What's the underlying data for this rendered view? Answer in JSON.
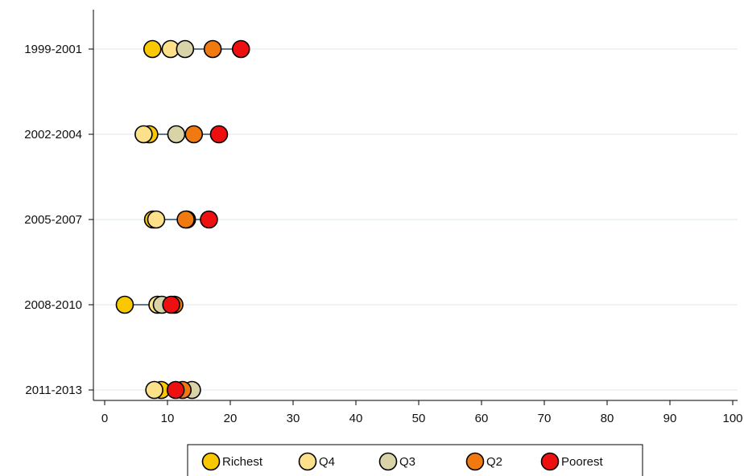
{
  "chart_data": {
    "type": "dot",
    "title": "",
    "xlabel": "",
    "ylabel": "",
    "xlim": [
      0,
      100
    ],
    "xticks": [
      0,
      10,
      20,
      30,
      40,
      50,
      60,
      70,
      80,
      90,
      100
    ],
    "categories": [
      "1999-2001",
      "2002-2004",
      "2005-2007",
      "2008-2010",
      "2011-2013"
    ],
    "grid": "horizontal",
    "legend_position": "bottom",
    "series": [
      {
        "name": "Richest",
        "color": "#F9C800",
        "values": [
          7.6,
          7.1,
          7.7,
          3.2,
          9.0
        ]
      },
      {
        "name": "Q4",
        "color": "#FDE08A",
        "values": [
          10.5,
          6.2,
          8.2,
          8.4,
          7.9
        ]
      },
      {
        "name": "Q3",
        "color": "#D9D4A8",
        "values": [
          12.8,
          11.4,
          13.1,
          9.1,
          13.9
        ]
      },
      {
        "name": "Q2",
        "color": "#F07A10",
        "values": [
          17.2,
          14.2,
          12.9,
          11.1,
          12.4
        ]
      },
      {
        "name": "Poorest",
        "color": "#EE1010",
        "values": [
          21.7,
          18.2,
          16.6,
          10.6,
          11.3
        ]
      }
    ]
  }
}
